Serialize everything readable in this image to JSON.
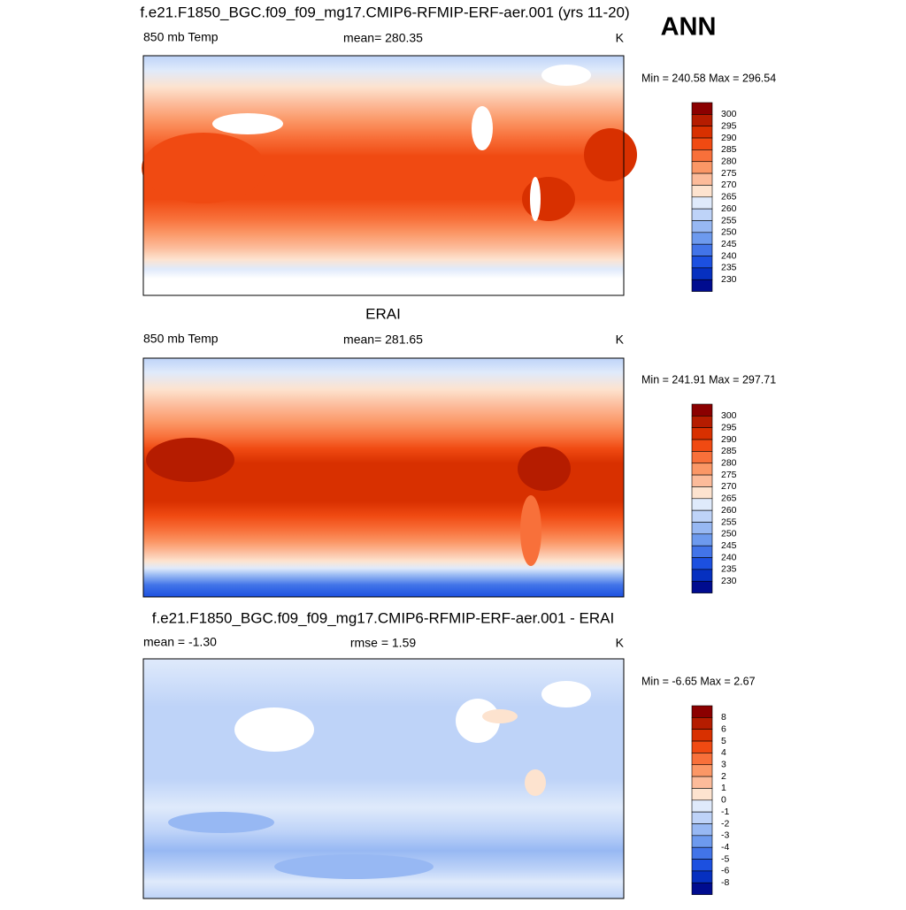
{
  "title": "ANN",
  "panels": [
    {
      "title": "f.e21.F1850_BGC.f09_f09_mg17.CMIP6-RFMIP-ERF-aer.001 (yrs 11-20)",
      "left": "850 mb Temp",
      "center": "mean= 280.35",
      "right": "K",
      "minmax": "Min = 240.58 Max = 296.54",
      "colorbar": {
        "labels": [
          300,
          295,
          290,
          285,
          280,
          275,
          270,
          265,
          260,
          255,
          250,
          245,
          240,
          235,
          230
        ],
        "colors": [
          "#8b0000",
          "#b51c00",
          "#d83000",
          "#f04a12",
          "#f8703a",
          "#fb9766",
          "#fcbb9a",
          "#fde3cf",
          "#dfeafb",
          "#bed3f8",
          "#97b8f3",
          "#6d9aee",
          "#4274e8",
          "#1c50e0",
          "#0630c0",
          "#000c8f"
        ]
      }
    },
    {
      "title": "ERAI",
      "left": "850 mb Temp",
      "center": "mean= 281.65",
      "right": "K",
      "minmax": "Min = 241.91 Max = 297.71",
      "colorbar": {
        "labels": [
          300,
          295,
          290,
          285,
          280,
          275,
          270,
          265,
          260,
          255,
          250,
          245,
          240,
          235,
          230
        ],
        "colors": [
          "#8b0000",
          "#b51c00",
          "#d83000",
          "#f04a12",
          "#f8703a",
          "#fb9766",
          "#fcbb9a",
          "#fde3cf",
          "#dfeafb",
          "#bed3f8",
          "#97b8f3",
          "#6d9aee",
          "#4274e8",
          "#1c50e0",
          "#0630c0",
          "#000c8f"
        ]
      }
    },
    {
      "title": "f.e21.F1850_BGC.f09_f09_mg17.CMIP6-RFMIP-ERF-aer.001 - ERAI",
      "left": "mean =  -1.30",
      "center": "rmse =   1.59",
      "right": "K",
      "minmax": "Min =  -6.65 Max =   2.67",
      "colorbar": {
        "labels": [
          8,
          6,
          5,
          4,
          3,
          2,
          1,
          0,
          -1,
          -2,
          -3,
          -4,
          -5,
          -6,
          -8
        ],
        "colors": [
          "#8b0000",
          "#b51c00",
          "#d83000",
          "#f04a12",
          "#f8703a",
          "#fb9766",
          "#fcbb9a",
          "#fde3cf",
          "#dfeafb",
          "#bed3f8",
          "#97b8f3",
          "#6d9aee",
          "#4274e8",
          "#1c50e0",
          "#0630c0",
          "#000c8f"
        ]
      }
    }
  ]
}
